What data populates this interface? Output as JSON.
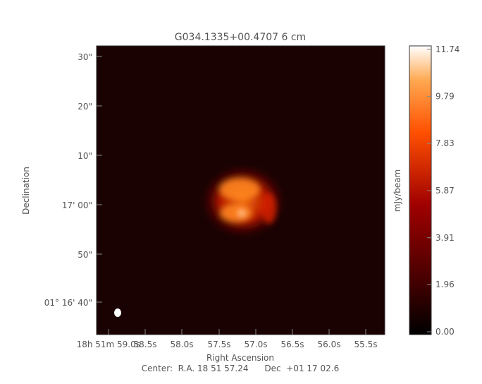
{
  "chart_data": {
    "type": "heatmap",
    "title": "G034.1335+00.4707 6 cm",
    "xlabel": "Right Ascension",
    "ylabel": "Declination",
    "x_ticks": [
      "18h 51m 59.0s",
      "58.5s",
      "58.0s",
      "57.5s",
      "57.0s",
      "56.5s",
      "56.0s",
      "55.5s"
    ],
    "y_ticks": [
      "01° 16' 40\"",
      "50\"",
      "17' 00\"",
      "10\"",
      "20\"",
      "30\""
    ],
    "colorbar": {
      "label": "mJy/beam",
      "range": [
        0.0,
        11.74
      ],
      "ticks": [
        "0.00",
        "1.96",
        "3.91",
        "5.87",
        "7.83",
        "9.79",
        "11.74"
      ],
      "colormap": [
        "#000000",
        "#5a0000",
        "#b40000",
        "#ff5a00",
        "#ffa040",
        "#ffffff"
      ]
    },
    "center_text": "Center:  R.A. 18 51 57.24      Dec  +01 17 02.6",
    "peak_value": 11.74,
    "beam_color": "#ffffff"
  }
}
